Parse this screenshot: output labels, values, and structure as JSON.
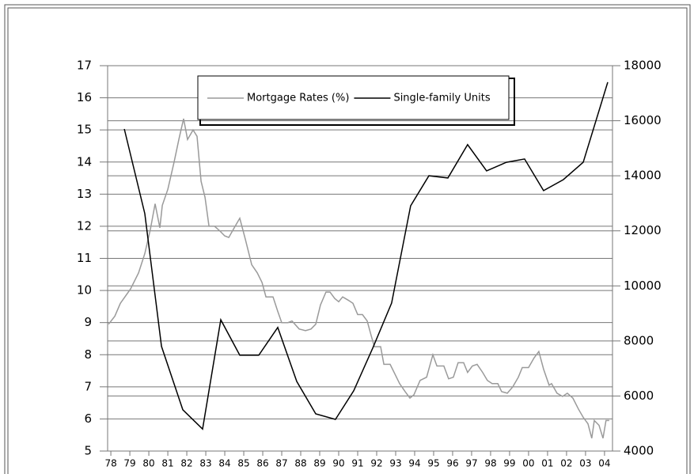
{
  "chart_data": {
    "type": "line",
    "series": [
      {
        "name": "Mortgage Rates (%)",
        "color": "#9a9a9a",
        "axis": "y",
        "x": [
          1977.88,
          1978.21,
          1978.5,
          1979.04,
          1979.46,
          1979.79,
          1980.08,
          1980.33,
          1980.58,
          1980.71,
          1981.0,
          1981.33,
          1981.58,
          1981.83,
          1982.04,
          1982.33,
          1982.54,
          1982.75,
          1982.96,
          1983.17,
          1983.46,
          1983.75,
          1984.0,
          1984.21,
          1984.5,
          1984.79,
          1985.08,
          1985.42,
          1985.71,
          1985.96,
          1986.17,
          1986.54,
          1986.79,
          1987.0,
          1987.33,
          1987.54,
          1987.92,
          1988.25,
          1988.54,
          1988.79,
          1989.04,
          1989.33,
          1989.54,
          1989.79,
          1990.0,
          1990.21,
          1990.5,
          1990.75,
          1991.0,
          1991.25,
          1991.5,
          1991.71,
          1991.88,
          1992.21,
          1992.38,
          1992.71,
          1992.96,
          1993.21,
          1993.5,
          1993.75,
          1993.96,
          1994.29,
          1994.63,
          1994.96,
          1995.17,
          1995.54,
          1995.79,
          1996.04,
          1996.29,
          1996.58,
          1996.79,
          1997.04,
          1997.29,
          1997.58,
          1997.83,
          1998.08,
          1998.38,
          1998.58,
          1998.88,
          1999.17,
          1999.46,
          1999.67,
          2000.0,
          2000.29,
          2000.54,
          2000.79,
          2001.08,
          2001.21,
          2001.5,
          2001.79,
          2002.04,
          2002.33,
          2002.63,
          2002.88,
          2003.13,
          2003.33,
          2003.46,
          2003.71,
          2003.92,
          2004.08,
          2004.25
        ],
        "values": [
          8.95,
          9.2,
          9.6,
          10.05,
          10.55,
          11.15,
          11.9,
          12.7,
          11.95,
          12.65,
          13.15,
          14.0,
          14.7,
          15.35,
          14.7,
          15.0,
          14.8,
          13.4,
          12.9,
          12.0,
          12.0,
          11.85,
          11.7,
          11.65,
          11.95,
          12.25,
          11.6,
          10.8,
          10.55,
          10.25,
          9.8,
          9.8,
          9.35,
          9.0,
          9.0,
          9.05,
          8.8,
          8.75,
          8.8,
          8.95,
          9.55,
          9.95,
          9.95,
          9.75,
          9.65,
          9.8,
          9.7,
          9.6,
          9.25,
          9.25,
          9.05,
          8.6,
          8.25,
          8.25,
          7.7,
          7.7,
          7.4,
          7.1,
          6.85,
          6.65,
          6.75,
          7.2,
          7.3,
          8.0,
          7.65,
          7.65,
          7.25,
          7.3,
          7.75,
          7.75,
          7.45,
          7.65,
          7.7,
          7.45,
          7.2,
          7.1,
          7.1,
          6.85,
          6.8,
          7.0,
          7.3,
          7.6,
          7.6,
          7.9,
          8.1,
          7.55,
          7.05,
          7.1,
          6.8,
          6.7,
          6.8,
          6.65,
          6.3,
          6.05,
          5.85,
          5.4,
          5.95,
          5.8,
          5.4,
          5.95,
          5.95
        ]
      },
      {
        "name": "Single-family Units",
        "color": "#000000",
        "axis": "y2",
        "x": [
          1978.71,
          1979.79,
          1980.67,
          1981.79,
          1982.83,
          1983.79,
          1984.79,
          1985.79,
          1986.79,
          1987.79,
          1988.79,
          1989.83,
          1990.79,
          1991.79,
          1992.79,
          1993.79,
          1994.75,
          1995.75,
          1996.79,
          1997.79,
          1998.83,
          1999.79,
          2000.79,
          2001.83,
          2002.88,
          2004.17
        ],
        "values": [
          15700,
          12625,
          7800,
          5500,
          4800,
          8770,
          7480,
          7480,
          8490,
          6530,
          5350,
          5150,
          6190,
          7740,
          9380,
          12910,
          14000,
          13920,
          15130,
          14180,
          14490,
          14610,
          13460,
          13860,
          14490,
          17400
        ]
      }
    ],
    "xlim": [
      1977.83,
      2004.42
    ],
    "xticks": [
      {
        "value": 1978,
        "label": "78"
      },
      {
        "value": 1979,
        "label": "79"
      },
      {
        "value": 1980,
        "label": "80"
      },
      {
        "value": 1981,
        "label": "81"
      },
      {
        "value": 1982,
        "label": "82"
      },
      {
        "value": 1983,
        "label": "83"
      },
      {
        "value": 1984,
        "label": "84"
      },
      {
        "value": 1985,
        "label": "85"
      },
      {
        "value": 1986,
        "label": "86"
      },
      {
        "value": 1987,
        "label": "87"
      },
      {
        "value": 1988,
        "label": "88"
      },
      {
        "value": 1989,
        "label": "89"
      },
      {
        "value": 1990,
        "label": "90"
      },
      {
        "value": 1991,
        "label": "91"
      },
      {
        "value": 1992,
        "label": "92"
      },
      {
        "value": 1993,
        "label": "93"
      },
      {
        "value": 1994,
        "label": "94"
      },
      {
        "value": 1995,
        "label": "95"
      },
      {
        "value": 1996,
        "label": "96"
      },
      {
        "value": 1997,
        "label": "97"
      },
      {
        "value": 1998,
        "label": "98"
      },
      {
        "value": 1999,
        "label": "99"
      },
      {
        "value": 2000,
        "label": "00"
      },
      {
        "value": 2001,
        "label": "01"
      },
      {
        "value": 2002,
        "label": "02"
      },
      {
        "value": 2003,
        "label": "03"
      },
      {
        "value": 2004,
        "label": "04"
      }
    ],
    "ylim": [
      5,
      17
    ],
    "yticks": [
      5,
      6,
      7,
      8,
      9,
      10,
      11,
      12,
      13,
      14,
      15,
      16,
      17
    ],
    "y2lim": [
      4000,
      18000
    ],
    "y2ticks": [
      4000,
      6000,
      8000,
      10000,
      12000,
      14000,
      16000,
      18000
    ],
    "grid": true,
    "legend": "top"
  }
}
